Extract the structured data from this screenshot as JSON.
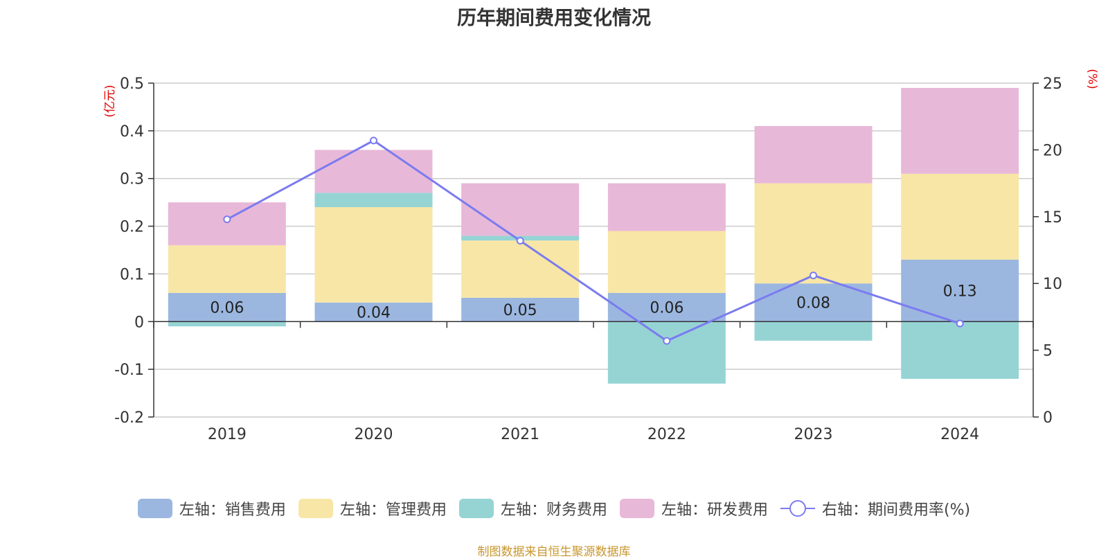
{
  "chart_data": {
    "type": "bar",
    "stacked": true,
    "title": "历年期间费用变化情况",
    "categories": [
      "2019",
      "2020",
      "2021",
      "2022",
      "2023",
      "2024"
    ],
    "left_axis": {
      "unit": "(亿元)",
      "ylim": [
        -0.2,
        0.5
      ],
      "ticks": [
        "0.5",
        "0.4",
        "0.3",
        "0.2",
        "0.1",
        "0",
        "-0.1",
        "-0.2"
      ],
      "tick_values": [
        0.5,
        0.4,
        0.3,
        0.2,
        0.1,
        0,
        -0.1,
        -0.2
      ]
    },
    "right_axis": {
      "unit": "(%)",
      "ylim": [
        0,
        25
      ],
      "ticks": [
        "25",
        "20",
        "15",
        "10",
        "5",
        "0"
      ],
      "tick_values": [
        25,
        20,
        15,
        10,
        5,
        0
      ]
    },
    "series": [
      {
        "name": "左轴：销售费用",
        "color": "#9bb7e0",
        "values": [
          0.06,
          0.04,
          0.05,
          0.06,
          0.08,
          0.13
        ],
        "labels": [
          "0.06",
          "0.04",
          "0.05",
          "0.06",
          "0.08",
          "0.13"
        ]
      },
      {
        "name": "左轴：管理费用",
        "color": "#f7e6a6",
        "values": [
          0.1,
          0.2,
          0.12,
          0.13,
          0.21,
          0.18
        ]
      },
      {
        "name": "左轴：财务费用",
        "color": "#96d4d4",
        "values": [
          -0.01,
          0.03,
          0.01,
          -0.13,
          -0.04,
          -0.12
        ]
      },
      {
        "name": "左轴：研发费用",
        "color": "#e8b8d8",
        "values": [
          0.09,
          0.09,
          0.11,
          0.1,
          0.12,
          0.18
        ]
      }
    ],
    "line": {
      "name": "右轴：期间费用率(%)",
      "color": "#7b7bef",
      "values": [
        14.8,
        20.7,
        13.2,
        5.7,
        10.6,
        7.0
      ]
    }
  },
  "source": "制图数据来自恒生聚源数据库"
}
